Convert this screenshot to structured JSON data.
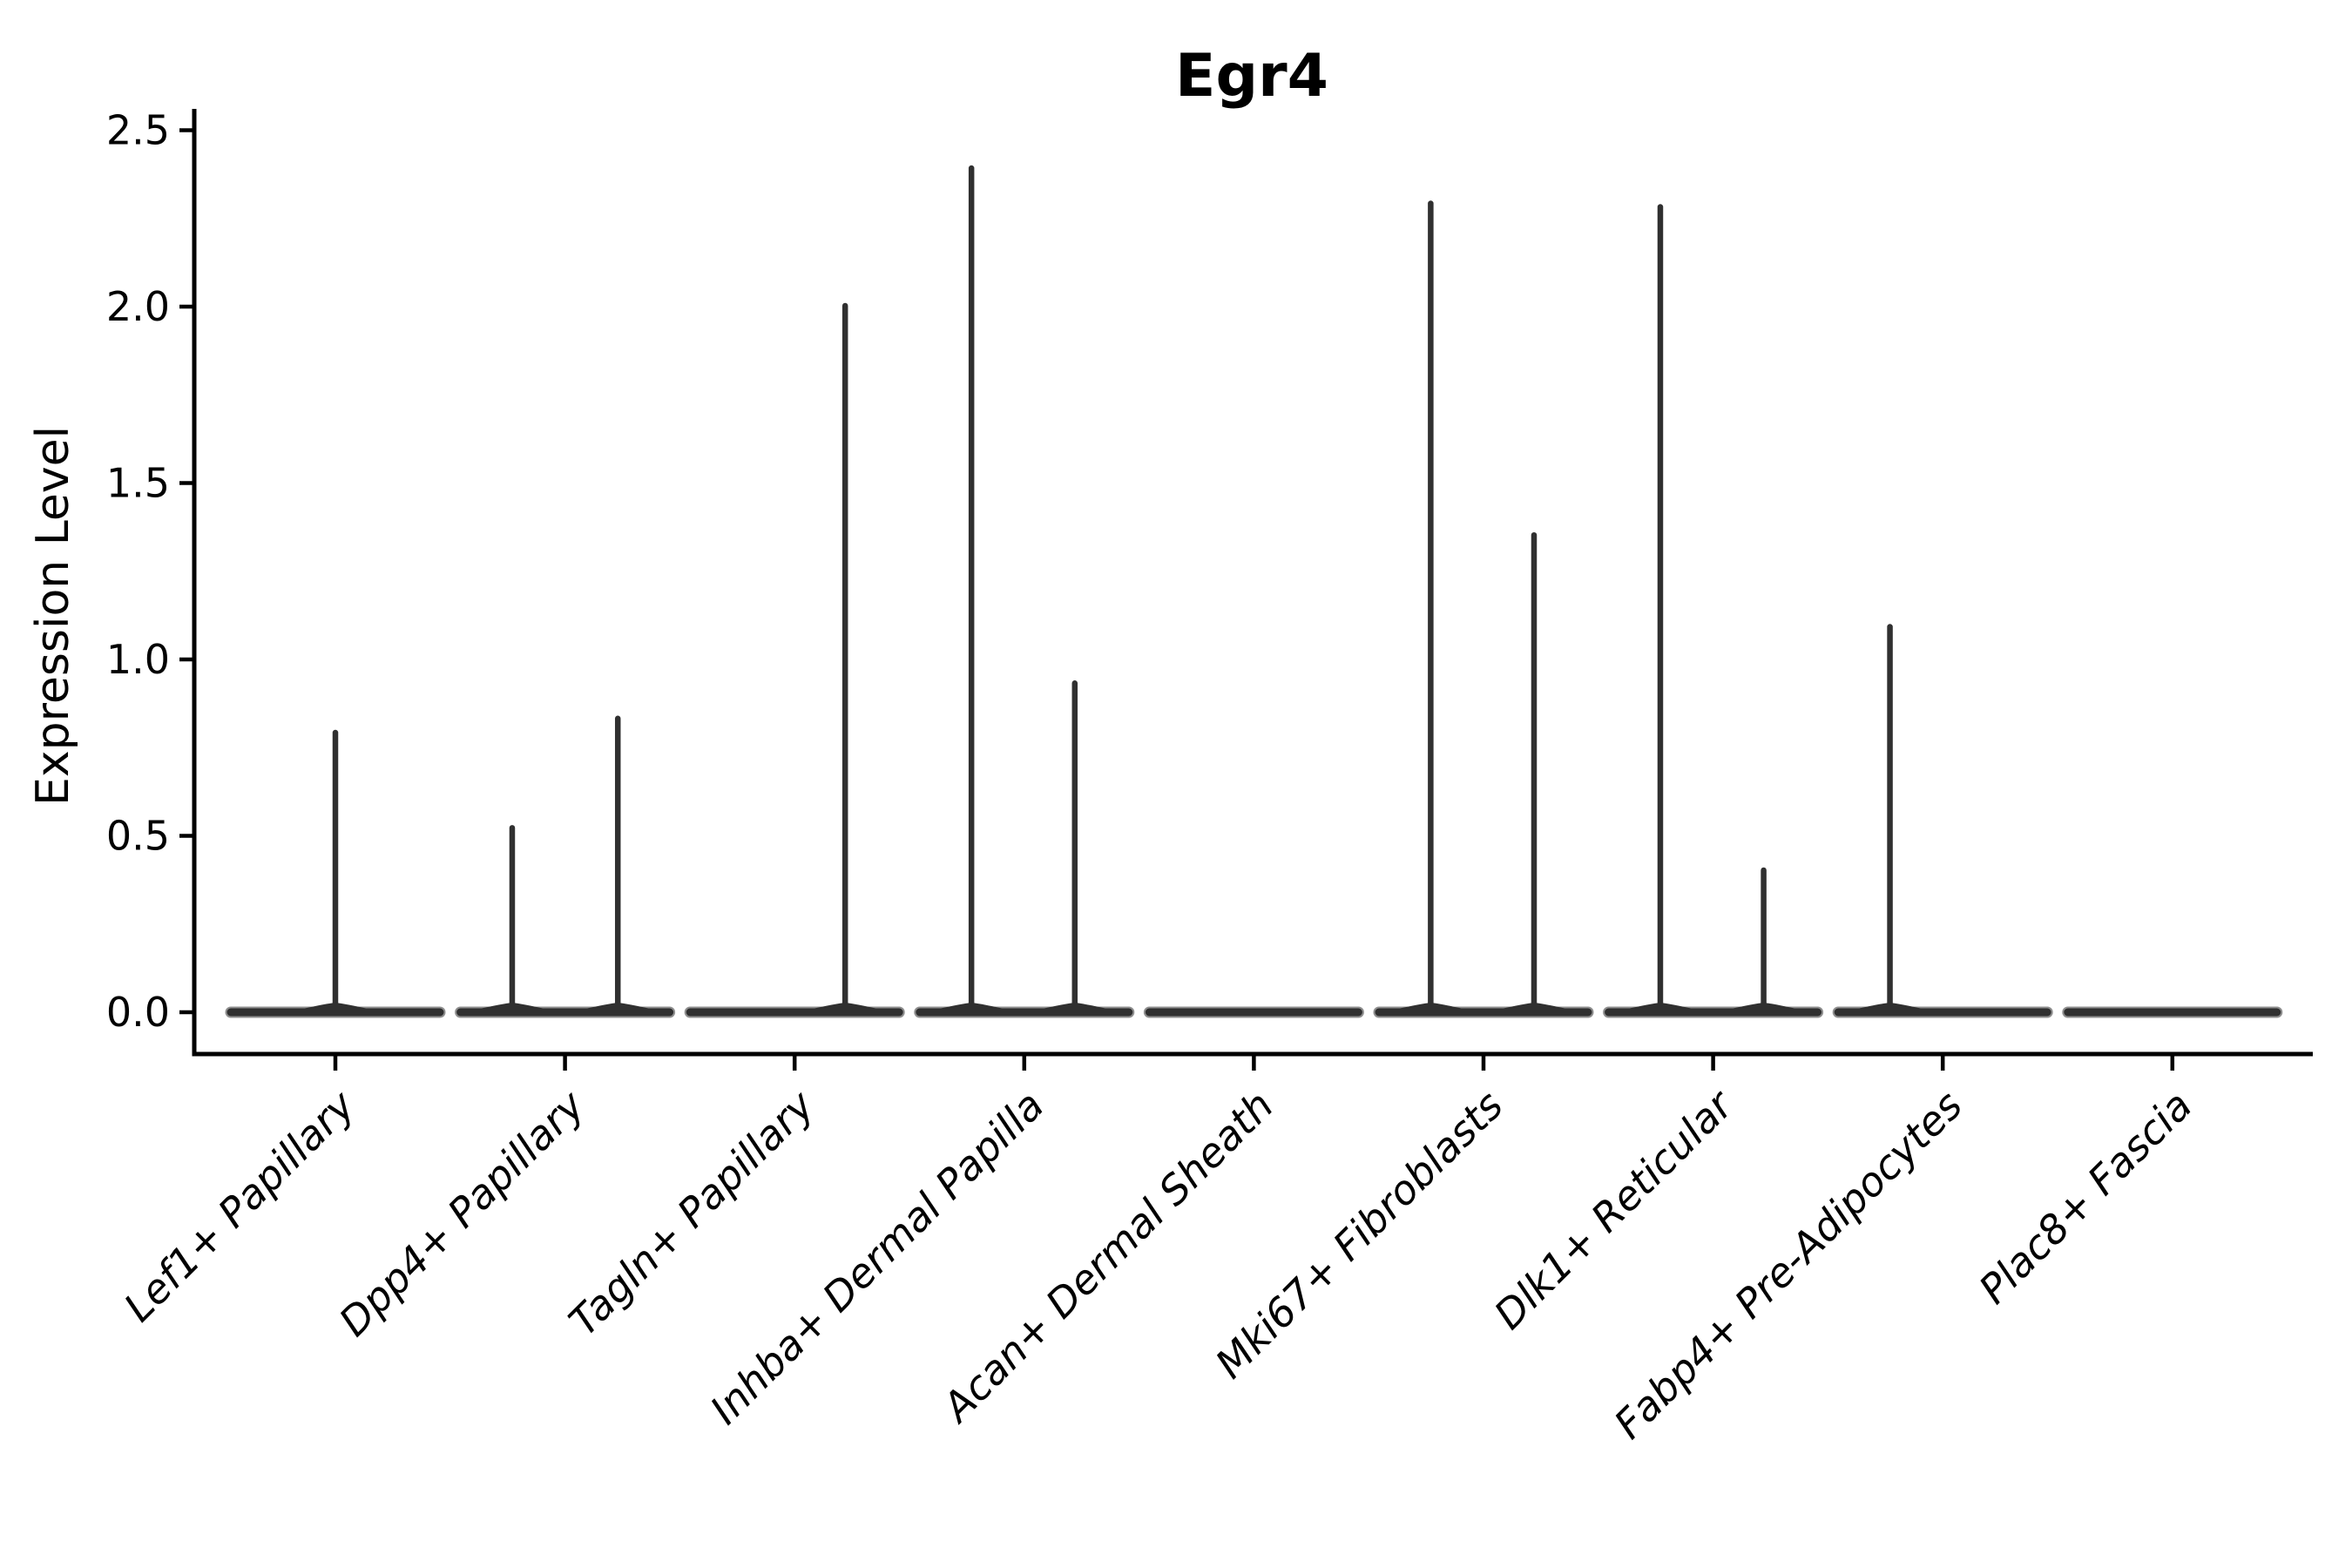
{
  "chart_data": {
    "type": "violin",
    "title": "Egr4",
    "xlabel": "",
    "ylabel": "Expression Level",
    "ylim": [
      -0.12,
      2.56
    ],
    "yticks": [
      "0.0",
      "0.5",
      "1.0",
      "1.5",
      "2.0",
      "2.5"
    ],
    "ytick_values": [
      0.0,
      0.5,
      1.0,
      1.5,
      2.0,
      2.5
    ],
    "grid": false,
    "legend": "none",
    "categories": [
      "Lef1+ Papillary",
      "Dpp4+ Papillary",
      "Tagln+ Papillary",
      "Inhba+ Dermal Papilla",
      "Acan+ Dermal Sheath",
      "Mki67+ Fibroblasts",
      "Dlk1+ Reticular",
      "Fabp4+ Pre-Adipocytes",
      "Plac8+ Fascia"
    ],
    "violin_style": {
      "body": "flat-at-zero",
      "body_width_units": 0.92,
      "line_color": "#303030",
      "halo_color": "#8f8f8f",
      "axis_color": "#000000",
      "background": "#ffffff"
    },
    "violins": [
      {
        "category": "Lef1+ Papillary",
        "spikes": [
          {
            "offset": 0.0,
            "max": 0.8
          }
        ]
      },
      {
        "category": "Dpp4+ Papillary",
        "spikes": [
          {
            "offset": -0.23,
            "max": 0.53
          },
          {
            "offset": 0.23,
            "max": 0.84
          }
        ]
      },
      {
        "category": "Tagln+ Papillary",
        "spikes": [
          {
            "offset": 0.22,
            "max": 2.01
          }
        ]
      },
      {
        "category": "Inhba+ Dermal Papilla",
        "spikes": [
          {
            "offset": -0.23,
            "max": 2.4
          },
          {
            "offset": 0.22,
            "max": 0.94
          }
        ]
      },
      {
        "category": "Acan+ Dermal Sheath",
        "spikes": []
      },
      {
        "category": "Mki67+ Fibroblasts",
        "spikes": [
          {
            "offset": -0.23,
            "max": 2.3
          },
          {
            "offset": 0.22,
            "max": 1.36
          }
        ]
      },
      {
        "category": "Dlk1+ Reticular",
        "spikes": [
          {
            "offset": -0.23,
            "max": 2.29
          },
          {
            "offset": 0.22,
            "max": 0.41
          }
        ]
      },
      {
        "category": "Fabp4+ Pre-Adipocytes",
        "spikes": [
          {
            "offset": -0.23,
            "max": 1.1
          }
        ]
      },
      {
        "category": "Plac8+ Fascia",
        "spikes": []
      }
    ]
  }
}
